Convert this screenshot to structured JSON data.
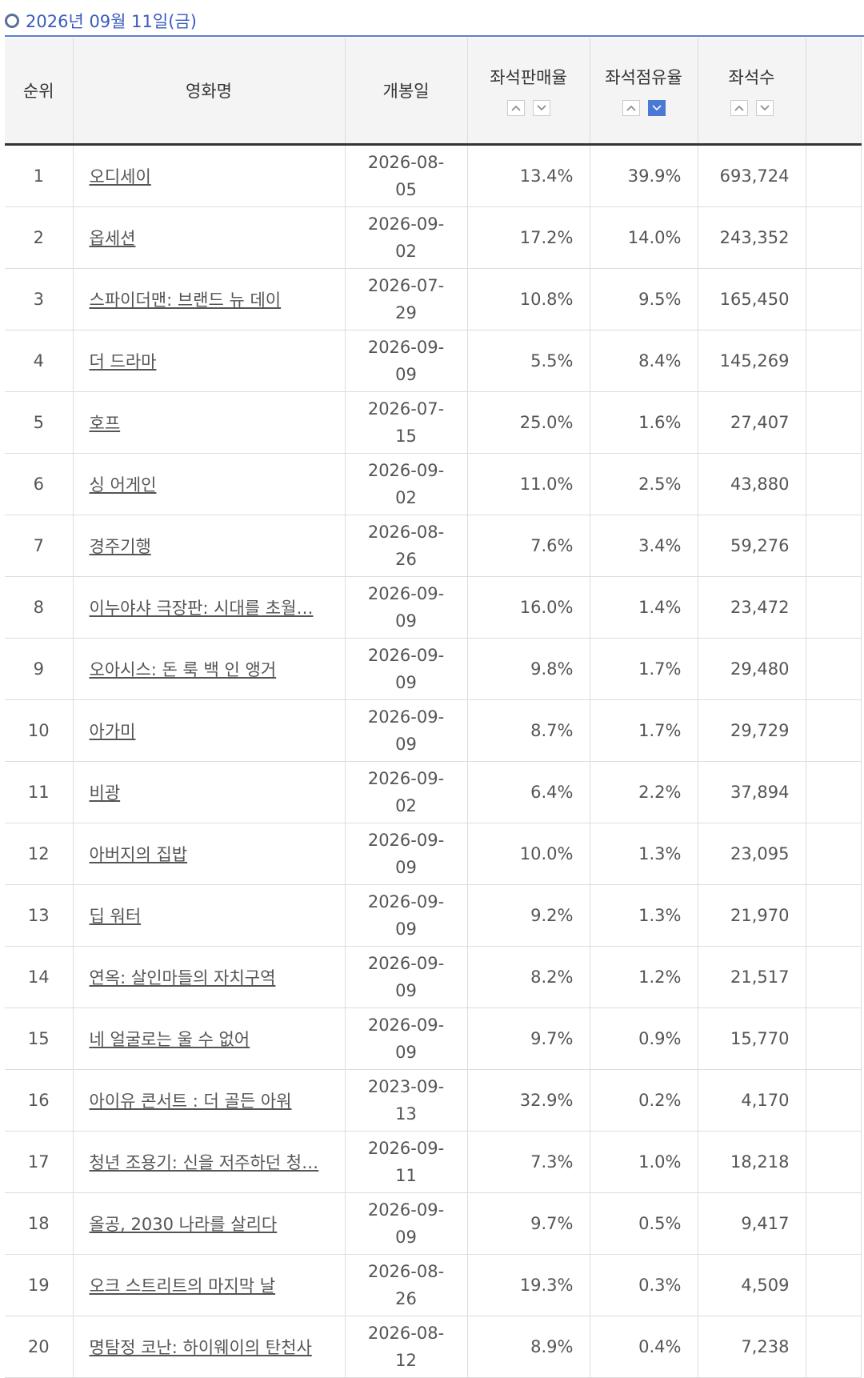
{
  "header": {
    "date": "2026년 09월 11일(금)"
  },
  "table": {
    "columns": [
      "순위",
      "영화명",
      "개봉일",
      "좌석판매율",
      "좌석점유율",
      "좌석수"
    ],
    "rows": [
      [
        "1",
        "오디세이",
        "2026-08-05",
        "13.4%",
        "39.9%",
        "693,724"
      ],
      [
        "2",
        "옵세션",
        "2026-09-02",
        "17.2%",
        "14.0%",
        "243,352"
      ],
      [
        "3",
        "스파이더맨: 브랜드 뉴 데이",
        "2026-07-29",
        "10.8%",
        "9.5%",
        "165,450"
      ],
      [
        "4",
        "더 드라마",
        "2026-09-09",
        "5.5%",
        "8.4%",
        "145,269"
      ],
      [
        "5",
        "호프",
        "2026-07-15",
        "25.0%",
        "1.6%",
        "27,407"
      ],
      [
        "6",
        "싱 어게인",
        "2026-09-02",
        "11.0%",
        "2.5%",
        "43,880"
      ],
      [
        "7",
        "경주기행",
        "2026-08-26",
        "7.6%",
        "3.4%",
        "59,276"
      ],
      [
        "8",
        "이누야샤 극장판: 시대를 초월…",
        "2026-09-09",
        "16.0%",
        "1.4%",
        "23,472"
      ],
      [
        "9",
        "오아시스: 돈 룩 백 인 앵거",
        "2026-09-09",
        "9.8%",
        "1.7%",
        "29,480"
      ],
      [
        "10",
        "아가미",
        "2026-09-09",
        "8.7%",
        "1.7%",
        "29,729"
      ],
      [
        "11",
        "비광",
        "2026-09-02",
        "6.4%",
        "2.2%",
        "37,894"
      ],
      [
        "12",
        "아버지의 집밥",
        "2026-09-09",
        "10.0%",
        "1.3%",
        "23,095"
      ],
      [
        "13",
        "딥 워터",
        "2026-09-09",
        "9.2%",
        "1.3%",
        "21,970"
      ],
      [
        "14",
        "연옥: 살인마들의 자치구역",
        "2026-09-09",
        "8.2%",
        "1.2%",
        "21,517"
      ],
      [
        "15",
        "네 얼굴로는 울 수 없어",
        "2026-09-09",
        "9.7%",
        "0.9%",
        "15,770"
      ],
      [
        "16",
        "아이유 콘서트 : 더 골든 아워",
        "2023-09-13",
        "32.9%",
        "0.2%",
        "4,170"
      ],
      [
        "17",
        "청년 조용기: 신을 저주하던 청…",
        "2026-09-11",
        "7.3%",
        "1.0%",
        "18,218"
      ],
      [
        "18",
        "올공, 2030 나라를 살리다",
        "2026-09-09",
        "9.7%",
        "0.5%",
        "9,417"
      ],
      [
        "19",
        "오크 스트리트의 마지막 날",
        "2026-08-26",
        "19.3%",
        "0.3%",
        "4,509"
      ],
      [
        "20",
        "명탐정 코난: 하이웨이의 탄천사",
        "2026-08-12",
        "8.9%",
        "0.4%",
        "7,238"
      ]
    ]
  }
}
